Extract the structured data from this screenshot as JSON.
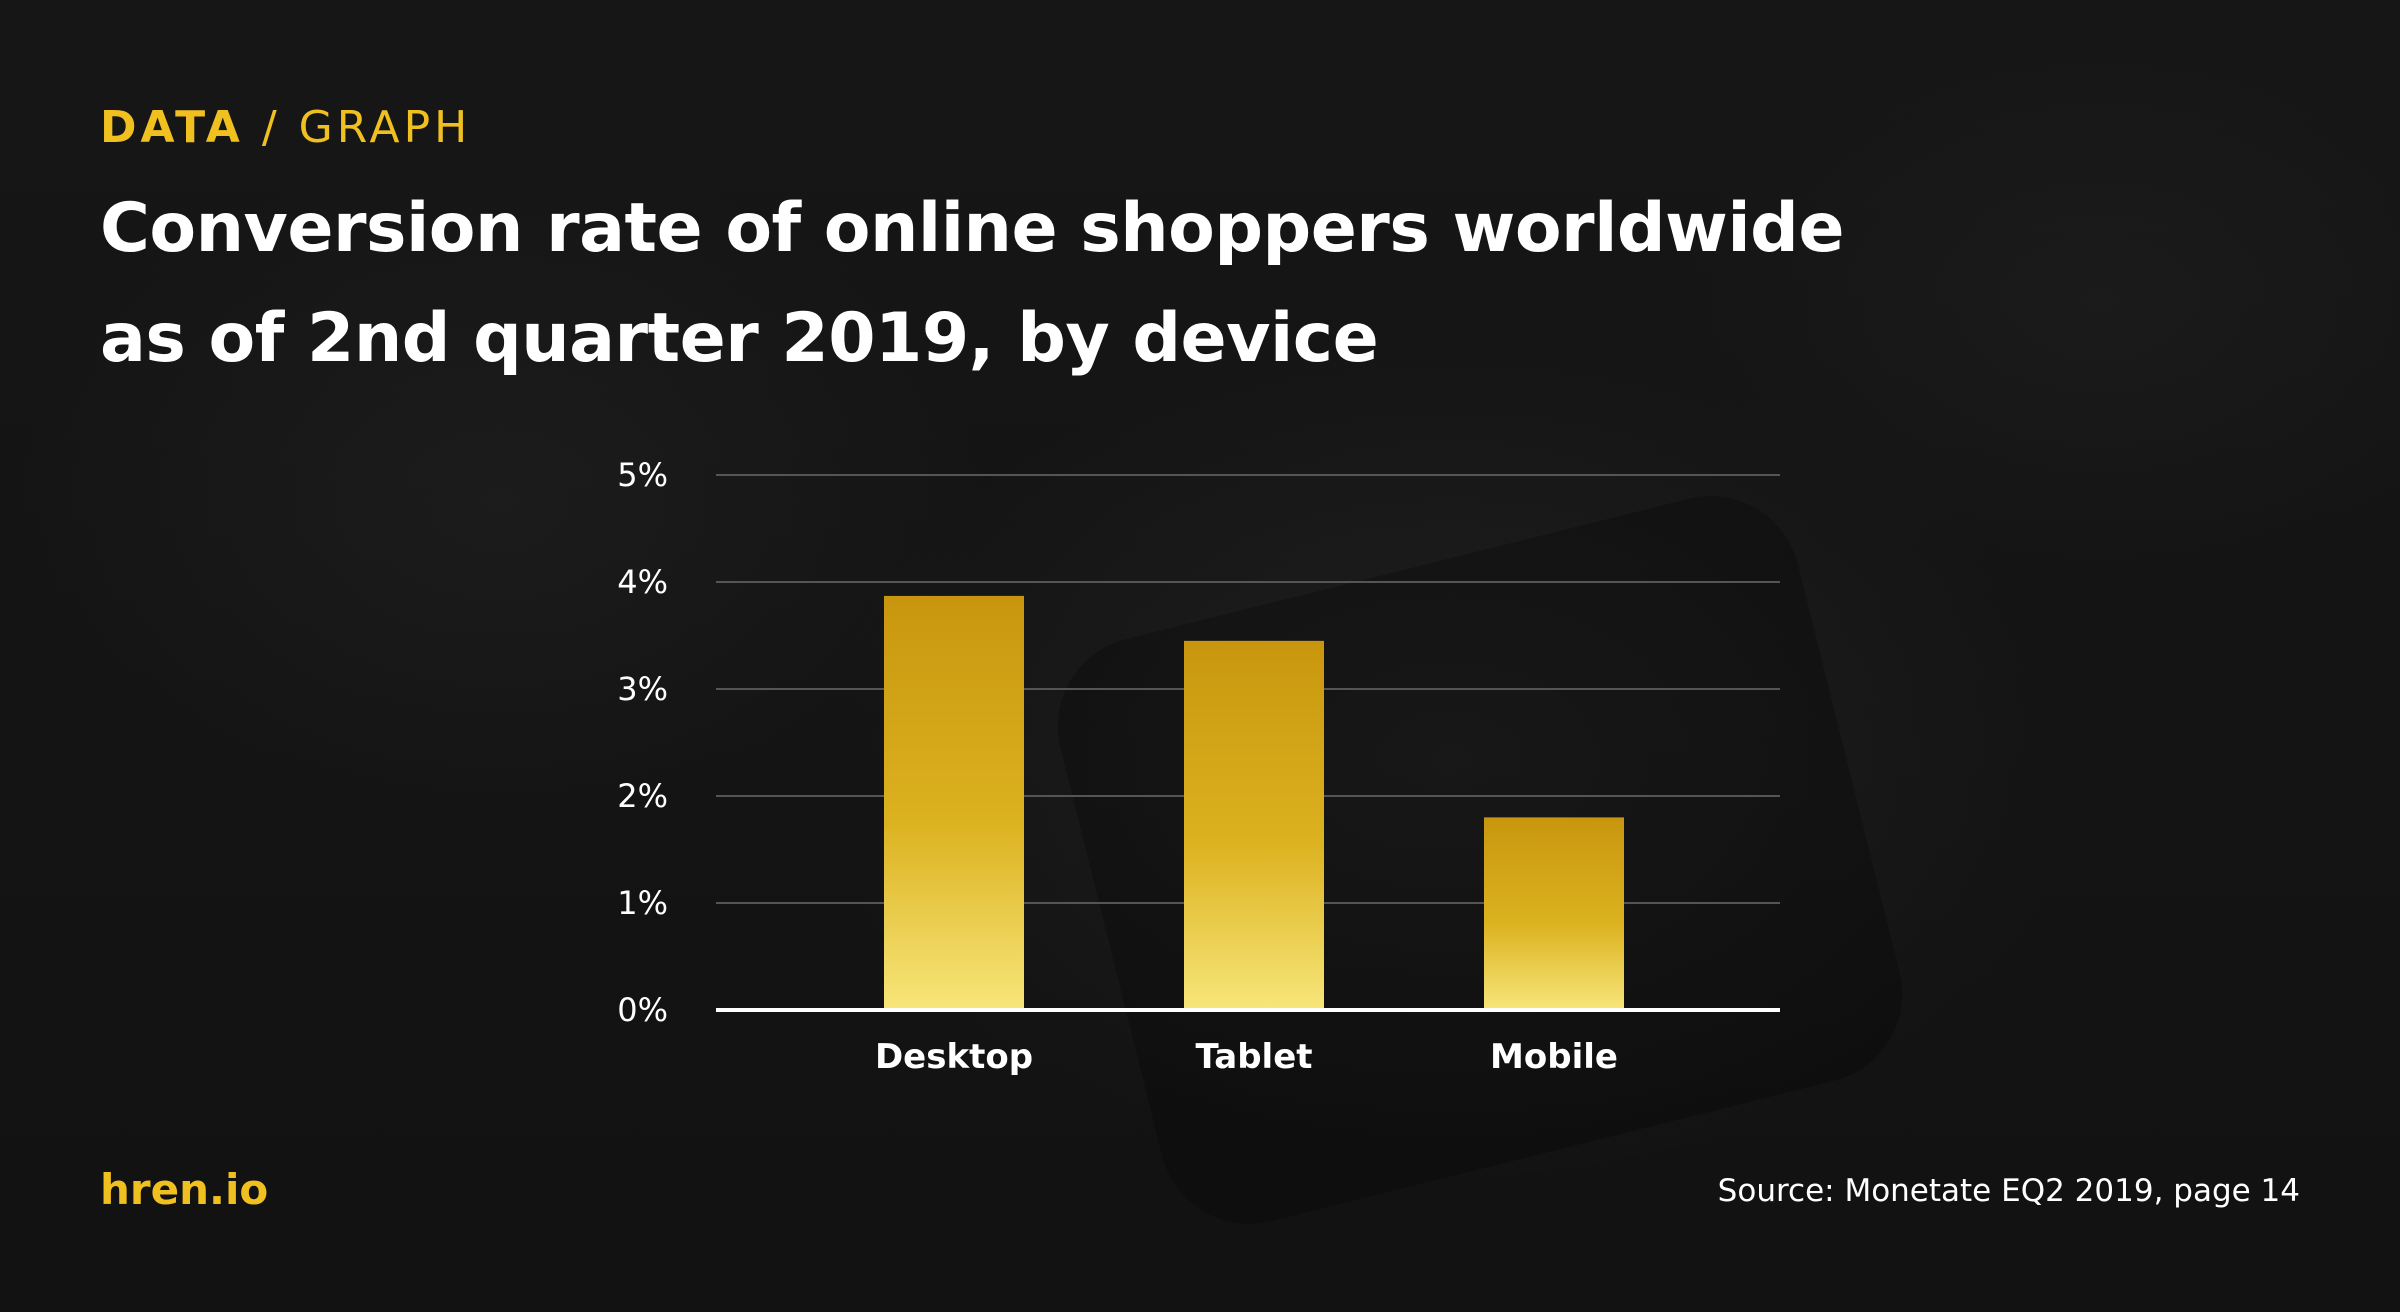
{
  "eyebrow": {
    "category": "DATA",
    "separator": "/",
    "type": "GRAPH"
  },
  "title": "Conversion rate of online shoppers worldwide as of 2nd quarter 2019, by device",
  "footer": {
    "brand": "hren.io",
    "source": "Source: Monetate EQ2 2019, page 14"
  },
  "colors": {
    "accent": "#f0c020",
    "bar_top": "#c8960e",
    "bar_bottom": "#f7e67a",
    "text": "#ffffff",
    "gridline": "#555555",
    "background": "#141414"
  },
  "chart_data": {
    "type": "bar",
    "categories": [
      "Desktop",
      "Tablet",
      "Mobile"
    ],
    "values": [
      3.87,
      3.45,
      1.8
    ],
    "ylim": [
      0,
      5
    ],
    "yticks": [
      "0%",
      "1%",
      "2%",
      "3%",
      "4%",
      "5%"
    ],
    "grid": true,
    "legend": "none"
  }
}
